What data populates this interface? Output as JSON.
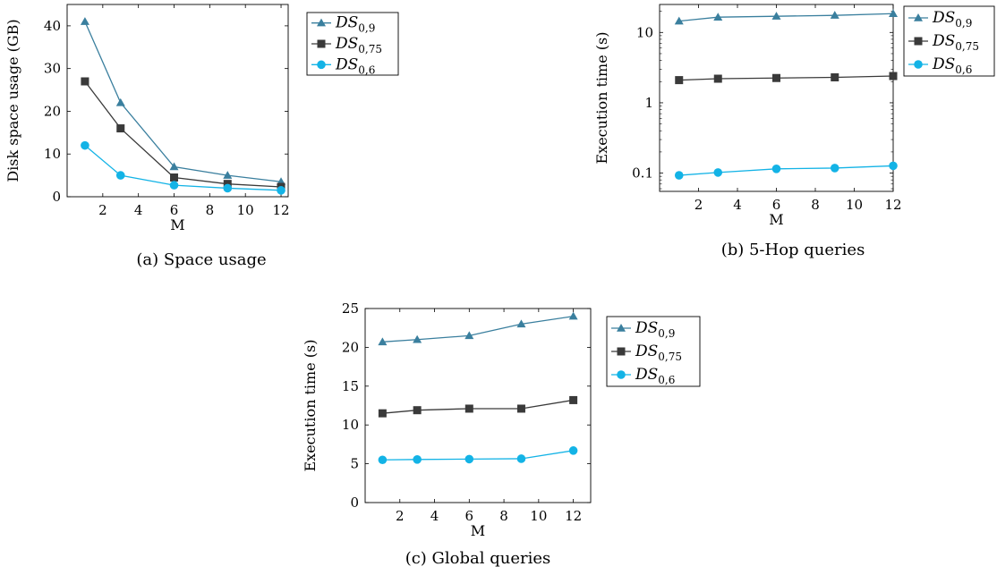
{
  "series_colors": {
    "ds09": "#3a7f9e",
    "ds075": "#3a3a3a",
    "ds06": "#13b3e6"
  },
  "series_markers": {
    "ds09": "triangle",
    "ds075": "square",
    "ds06": "circle"
  },
  "chart_data": [
    {
      "id": "a",
      "type": "line",
      "caption": "(a) Space usage",
      "xlabel": "M",
      "ylabel": "Disk space usage (GB)",
      "xlim": [
        0,
        12.4
      ],
      "ylim": [
        0,
        45
      ],
      "xticks": [
        2,
        4,
        6,
        8,
        10,
        12
      ],
      "yticks": [
        0,
        10,
        20,
        30,
        40
      ],
      "ytick_labels": [
        "0",
        "10",
        "20",
        "30",
        "40"
      ],
      "yscale": "linear",
      "x": [
        1,
        3,
        6,
        9,
        12
      ],
      "legend": {
        "position": "right",
        "entries": [
          {
            "base": "DS",
            "sub": "0,9"
          },
          {
            "base": "DS",
            "sub": "0,75"
          },
          {
            "base": "DS",
            "sub": "0,6"
          }
        ]
      },
      "series": [
        {
          "key": "ds09",
          "values": [
            41,
            22,
            7,
            5,
            3.5
          ]
        },
        {
          "key": "ds075",
          "values": [
            27,
            16,
            4.5,
            3,
            2.3
          ]
        },
        {
          "key": "ds06",
          "values": [
            12,
            5,
            2.7,
            2,
            1.5
          ]
        }
      ]
    },
    {
      "id": "b",
      "type": "line",
      "caption": "(b) 5-Hop queries",
      "xlabel": "M",
      "ylabel": "Execution time (s)",
      "xlim": [
        0,
        12
      ],
      "ylim": [
        0.055,
        25
      ],
      "xticks": [
        2,
        4,
        6,
        8,
        10,
        12
      ],
      "yticks": [
        0.1,
        1,
        10
      ],
      "ytick_labels": [
        "0.1",
        "1",
        "10"
      ],
      "yscale": "log",
      "x": [
        1,
        3,
        6,
        9,
        12
      ],
      "legend": {
        "position": "right",
        "entries": [
          {
            "base": "DS",
            "sub": "0,9"
          },
          {
            "base": "DS",
            "sub": "0,75"
          },
          {
            "base": "DS",
            "sub": "0,6"
          }
        ]
      },
      "series": [
        {
          "key": "ds09",
          "values": [
            14.5,
            16.5,
            17,
            17.5,
            18.5
          ]
        },
        {
          "key": "ds075",
          "values": [
            2.1,
            2.2,
            2.25,
            2.3,
            2.4
          ]
        },
        {
          "key": "ds06",
          "values": [
            0.093,
            0.102,
            0.115,
            0.118,
            0.127
          ]
        }
      ]
    },
    {
      "id": "c",
      "type": "line",
      "caption": "(c) Global queries",
      "xlabel": "M",
      "ylabel": "Execution time (s)",
      "xlim": [
        0,
        13
      ],
      "ylim": [
        0,
        25
      ],
      "xticks": [
        2,
        4,
        6,
        8,
        10,
        12
      ],
      "yticks": [
        0,
        5,
        10,
        15,
        20,
        25
      ],
      "ytick_labels": [
        "0",
        "5",
        "10",
        "15",
        "20",
        "25"
      ],
      "yscale": "linear",
      "x": [
        1,
        3,
        6,
        9,
        12
      ],
      "legend": {
        "position": "right",
        "entries": [
          {
            "base": "DS",
            "sub": "0,9"
          },
          {
            "base": "DS",
            "sub": "0,75"
          },
          {
            "base": "DS",
            "sub": "0,6"
          }
        ]
      },
      "series": [
        {
          "key": "ds09",
          "values": [
            20.7,
            21,
            21.5,
            23,
            24
          ]
        },
        {
          "key": "ds075",
          "values": [
            11.5,
            11.9,
            12.1,
            12.1,
            13.2
          ]
        },
        {
          "key": "ds06",
          "values": [
            5.5,
            5.55,
            5.6,
            5.65,
            6.7
          ]
        }
      ]
    }
  ]
}
